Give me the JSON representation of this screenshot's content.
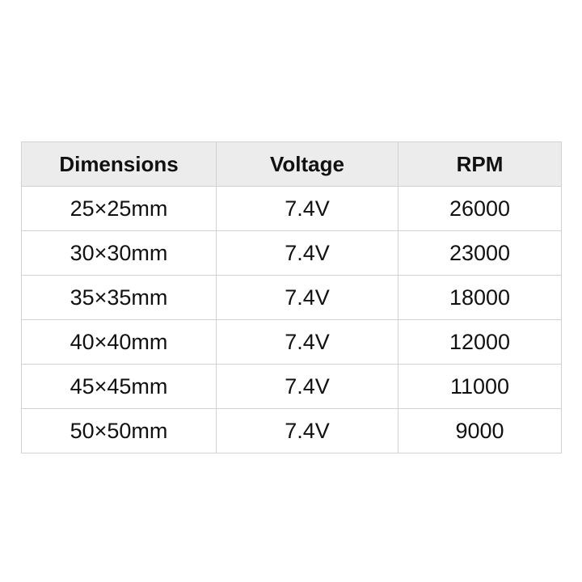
{
  "table": {
    "headers": [
      "Dimensions",
      "Voltage",
      "RPM"
    ],
    "rows": [
      [
        "25×25mm",
        "7.4V",
        "26000"
      ],
      [
        "30×30mm",
        "7.4V",
        "23000"
      ],
      [
        "35×35mm",
        "7.4V",
        "18000"
      ],
      [
        "40×40mm",
        "7.4V",
        "12000"
      ],
      [
        "45×45mm",
        "7.4V",
        "11000"
      ],
      [
        "50×50mm",
        "7.4V",
        "9000"
      ]
    ]
  },
  "colors": {
    "header_bg": "#ececec",
    "border": "#d2d2d2",
    "text": "#111111"
  }
}
